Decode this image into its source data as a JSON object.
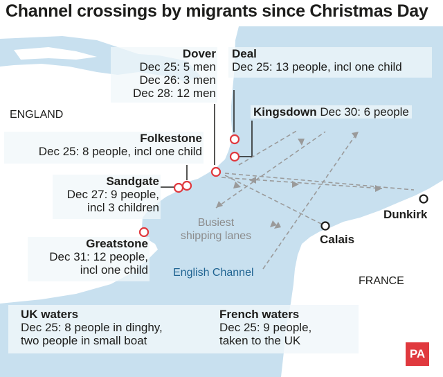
{
  "title": "Channel crossings by migrants since Christmas Day",
  "map": {
    "country_labels": {
      "england": "ENGLAND",
      "france": "FRANCE"
    },
    "sea_label": "English Channel",
    "shipping_label": [
      "Busiest",
      "shipping lanes"
    ],
    "locations": {
      "dover": {
        "name": "Dover",
        "lines": [
          "Dec 25: 5 men",
          "Dec 26: 3 men",
          "Dec 28: 12 men"
        ]
      },
      "deal": {
        "name": "Deal",
        "lines": [
          "Dec 25: 13 people, incl one child"
        ]
      },
      "kingsdown": {
        "name": "Kingsdown",
        "detail": "Dec 30: 6 people"
      },
      "folkestone": {
        "name": "Folkestone",
        "lines": [
          "Dec 25: 8 people, incl one child"
        ]
      },
      "sandgate": {
        "name": "Sandgate",
        "lines": [
          "Dec 27: 9 people,",
          "incl 3 children"
        ]
      },
      "greatstone": {
        "name": "Greatstone",
        "lines": [
          "Dec 31: 12 people,",
          "incl one child"
        ]
      },
      "calais": {
        "name": "Calais"
      },
      "dunkirk": {
        "name": "Dunkirk"
      }
    },
    "marker_color": "#e0393e",
    "sea_color": "#c8e0ef",
    "land_color": "#ffffff"
  },
  "waters": {
    "uk": {
      "heading": "UK waters",
      "lines": [
        "Dec 25: 8 people in dinghy,",
        "two people in small boat"
      ]
    },
    "french": {
      "heading": "French waters",
      "lines": [
        "Dec 25: 9 people,",
        "taken to the UK"
      ]
    }
  },
  "logo": "PA"
}
